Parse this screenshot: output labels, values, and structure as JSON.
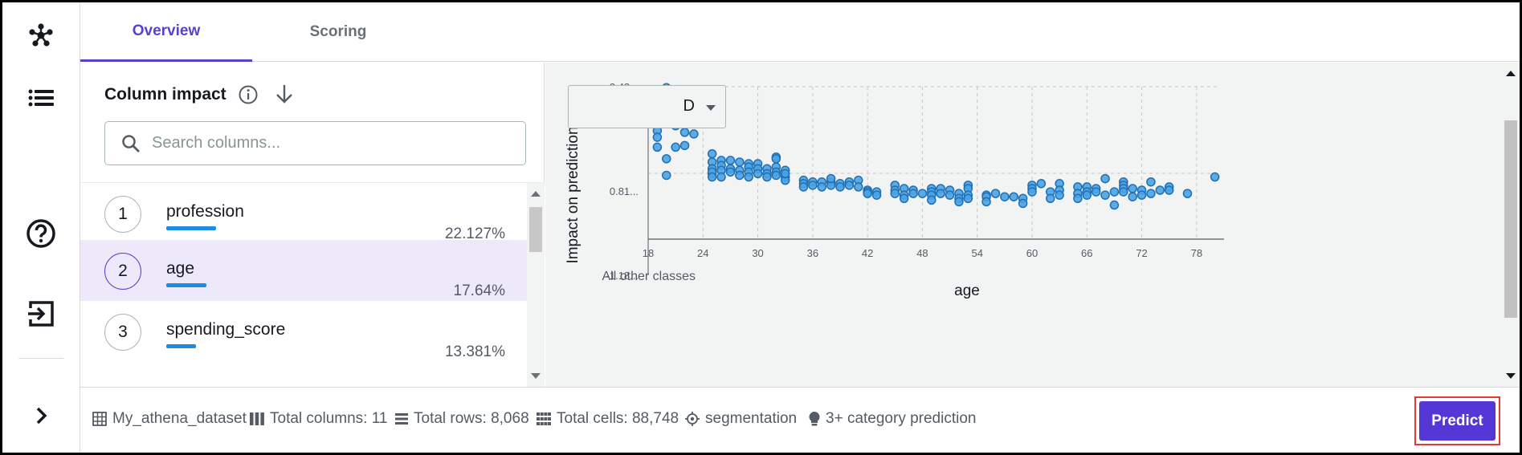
{
  "tabs": [
    {
      "label": "Overview",
      "active": true
    },
    {
      "label": "Scoring",
      "active": false
    }
  ],
  "column_impact": {
    "title": "Column impact",
    "search_placeholder": "Search columns...",
    "items": [
      {
        "rank": "1",
        "name": "profession",
        "percent": "22.127%",
        "value": 22.127
      },
      {
        "rank": "2",
        "name": "age",
        "percent": "17.64%",
        "value": 17.64
      },
      {
        "rank": "3",
        "name": "spending_score",
        "percent": "13.381%",
        "value": 13.381
      }
    ],
    "selected": "age"
  },
  "class_selector": {
    "value": "D"
  },
  "chart_labels": {
    "other_classes": "All other classes"
  },
  "chart_data": {
    "type": "scatter",
    "xlabel": "age",
    "ylabel": "Impact on prediction",
    "xticks": [
      "18",
      "24",
      "30",
      "36",
      "42",
      "48",
      "54",
      "60",
      "66",
      "72",
      "78"
    ],
    "yticks": [
      "3.43...",
      "0.81...",
      "-1.18..."
    ],
    "xlim": [
      18,
      81
    ],
    "ylim": [
      -1.18,
      3.43
    ],
    "grid": true,
    "color": "#4ba3e3",
    "points": [
      [
        18,
        3.2
      ],
      [
        19,
        2.5
      ],
      [
        19,
        2.1
      ],
      [
        19,
        1.6
      ],
      [
        19,
        1.9
      ],
      [
        20,
        3.4
      ],
      [
        20,
        3.25
      ],
      [
        20,
        2.45
      ],
      [
        20,
        1.25
      ],
      [
        20,
        0.75
      ],
      [
        21,
        2.4
      ],
      [
        21,
        2.25
      ],
      [
        21,
        1.6
      ],
      [
        22,
        2.7
      ],
      [
        22,
        2.55
      ],
      [
        22,
        2.05
      ],
      [
        22,
        1.65
      ],
      [
        23,
        2.0
      ],
      [
        25,
        1.4
      ],
      [
        25,
        1.15
      ],
      [
        25,
        0.8
      ],
      [
        25,
        0.95
      ],
      [
        25,
        0.85
      ],
      [
        25,
        0.7
      ],
      [
        26,
        1.2
      ],
      [
        26,
        1.05
      ],
      [
        26,
        0.9
      ],
      [
        26,
        0.7
      ],
      [
        27,
        1.2
      ],
      [
        27,
        0.95
      ],
      [
        27,
        0.85
      ],
      [
        28,
        1.15
      ],
      [
        28,
        0.9
      ],
      [
        28,
        0.75
      ],
      [
        29,
        1.1
      ],
      [
        29,
        1.0
      ],
      [
        29,
        0.85
      ],
      [
        29,
        0.7
      ],
      [
        30,
        1.1
      ],
      [
        30,
        0.95
      ],
      [
        30,
        0.8
      ],
      [
        31,
        0.95
      ],
      [
        31,
        0.8
      ],
      [
        31,
        0.7
      ],
      [
        32,
        1.3
      ],
      [
        32,
        1.25
      ],
      [
        32,
        1.0
      ],
      [
        32,
        0.85
      ],
      [
        32,
        0.75
      ],
      [
        33,
        0.9
      ],
      [
        33,
        0.7
      ],
      [
        33,
        0.6
      ],
      [
        33,
        0.8
      ],
      [
        35,
        0.6
      ],
      [
        35,
        0.5
      ],
      [
        35,
        0.4
      ],
      [
        36,
        0.55
      ],
      [
        36,
        0.45
      ],
      [
        37,
        0.55
      ],
      [
        37,
        0.4
      ],
      [
        38,
        0.55
      ],
      [
        38,
        0.45
      ],
      [
        38,
        0.65
      ],
      [
        39,
        0.5
      ],
      [
        39,
        0.4
      ],
      [
        40,
        0.55
      ],
      [
        40,
        0.45
      ],
      [
        41,
        0.6
      ],
      [
        41,
        0.4
      ],
      [
        42,
        0.3
      ],
      [
        42,
        0.25
      ],
      [
        42,
        0.2
      ],
      [
        43,
        0.25
      ],
      [
        43,
        0.15
      ],
      [
        45,
        0.45
      ],
      [
        45,
        0.3
      ],
      [
        45,
        0.2
      ],
      [
        46,
        0.35
      ],
      [
        46,
        0.15
      ],
      [
        46,
        0.05
      ],
      [
        47,
        0.3
      ],
      [
        47,
        0.2
      ],
      [
        48,
        0.2
      ],
      [
        49,
        0.35
      ],
      [
        49,
        0.25
      ],
      [
        49,
        0.15
      ],
      [
        49,
        0.0
      ],
      [
        50,
        0.35
      ],
      [
        50,
        0.2
      ],
      [
        51,
        0.3
      ],
      [
        51,
        0.15
      ],
      [
        52,
        0.2
      ],
      [
        52,
        0.05
      ],
      [
        52,
        -0.05
      ],
      [
        53,
        0.45
      ],
      [
        53,
        0.35
      ],
      [
        53,
        0.15
      ],
      [
        53,
        0.05
      ],
      [
        55,
        0.15
      ],
      [
        55,
        0.1
      ],
      [
        55,
        -0.05
      ],
      [
        56,
        0.2
      ],
      [
        57,
        0.1
      ],
      [
        58,
        0.1
      ],
      [
        59,
        0.05
      ],
      [
        59,
        -0.1
      ],
      [
        60,
        0.45
      ],
      [
        60,
        0.35
      ],
      [
        60,
        0.25
      ],
      [
        61,
        0.5
      ],
      [
        62,
        0.25
      ],
      [
        62,
        0.05
      ],
      [
        63,
        0.5
      ],
      [
        63,
        0.3
      ],
      [
        63,
        0.15
      ],
      [
        65,
        0.4
      ],
      [
        65,
        0.2
      ],
      [
        65,
        0.05
      ],
      [
        66,
        0.4
      ],
      [
        66,
        0.25
      ],
      [
        66,
        0.15
      ],
      [
        67,
        0.35
      ],
      [
        67,
        0.25
      ],
      [
        68,
        0.65
      ],
      [
        68,
        0.15
      ],
      [
        69,
        0.25
      ],
      [
        69,
        -0.15
      ],
      [
        70,
        0.55
      ],
      [
        70,
        0.45
      ],
      [
        70,
        0.35
      ],
      [
        70,
        0.25
      ],
      [
        71,
        0.35
      ],
      [
        71,
        0.1
      ],
      [
        72,
        0.3
      ],
      [
        72,
        0.15
      ],
      [
        73,
        0.55
      ],
      [
        73,
        0.2
      ],
      [
        74,
        0.3
      ],
      [
        75,
        0.4
      ],
      [
        75,
        0.3
      ],
      [
        77,
        0.2
      ],
      [
        80,
        0.7
      ]
    ]
  },
  "footer": {
    "dataset": "My_athena_dataset",
    "total_columns": "Total columns: 11",
    "total_rows": "Total rows: 8,068",
    "total_cells": "Total cells: 88,748",
    "target": "segmentation",
    "problem_type": "3+ category prediction",
    "predict_label": "Predict"
  }
}
